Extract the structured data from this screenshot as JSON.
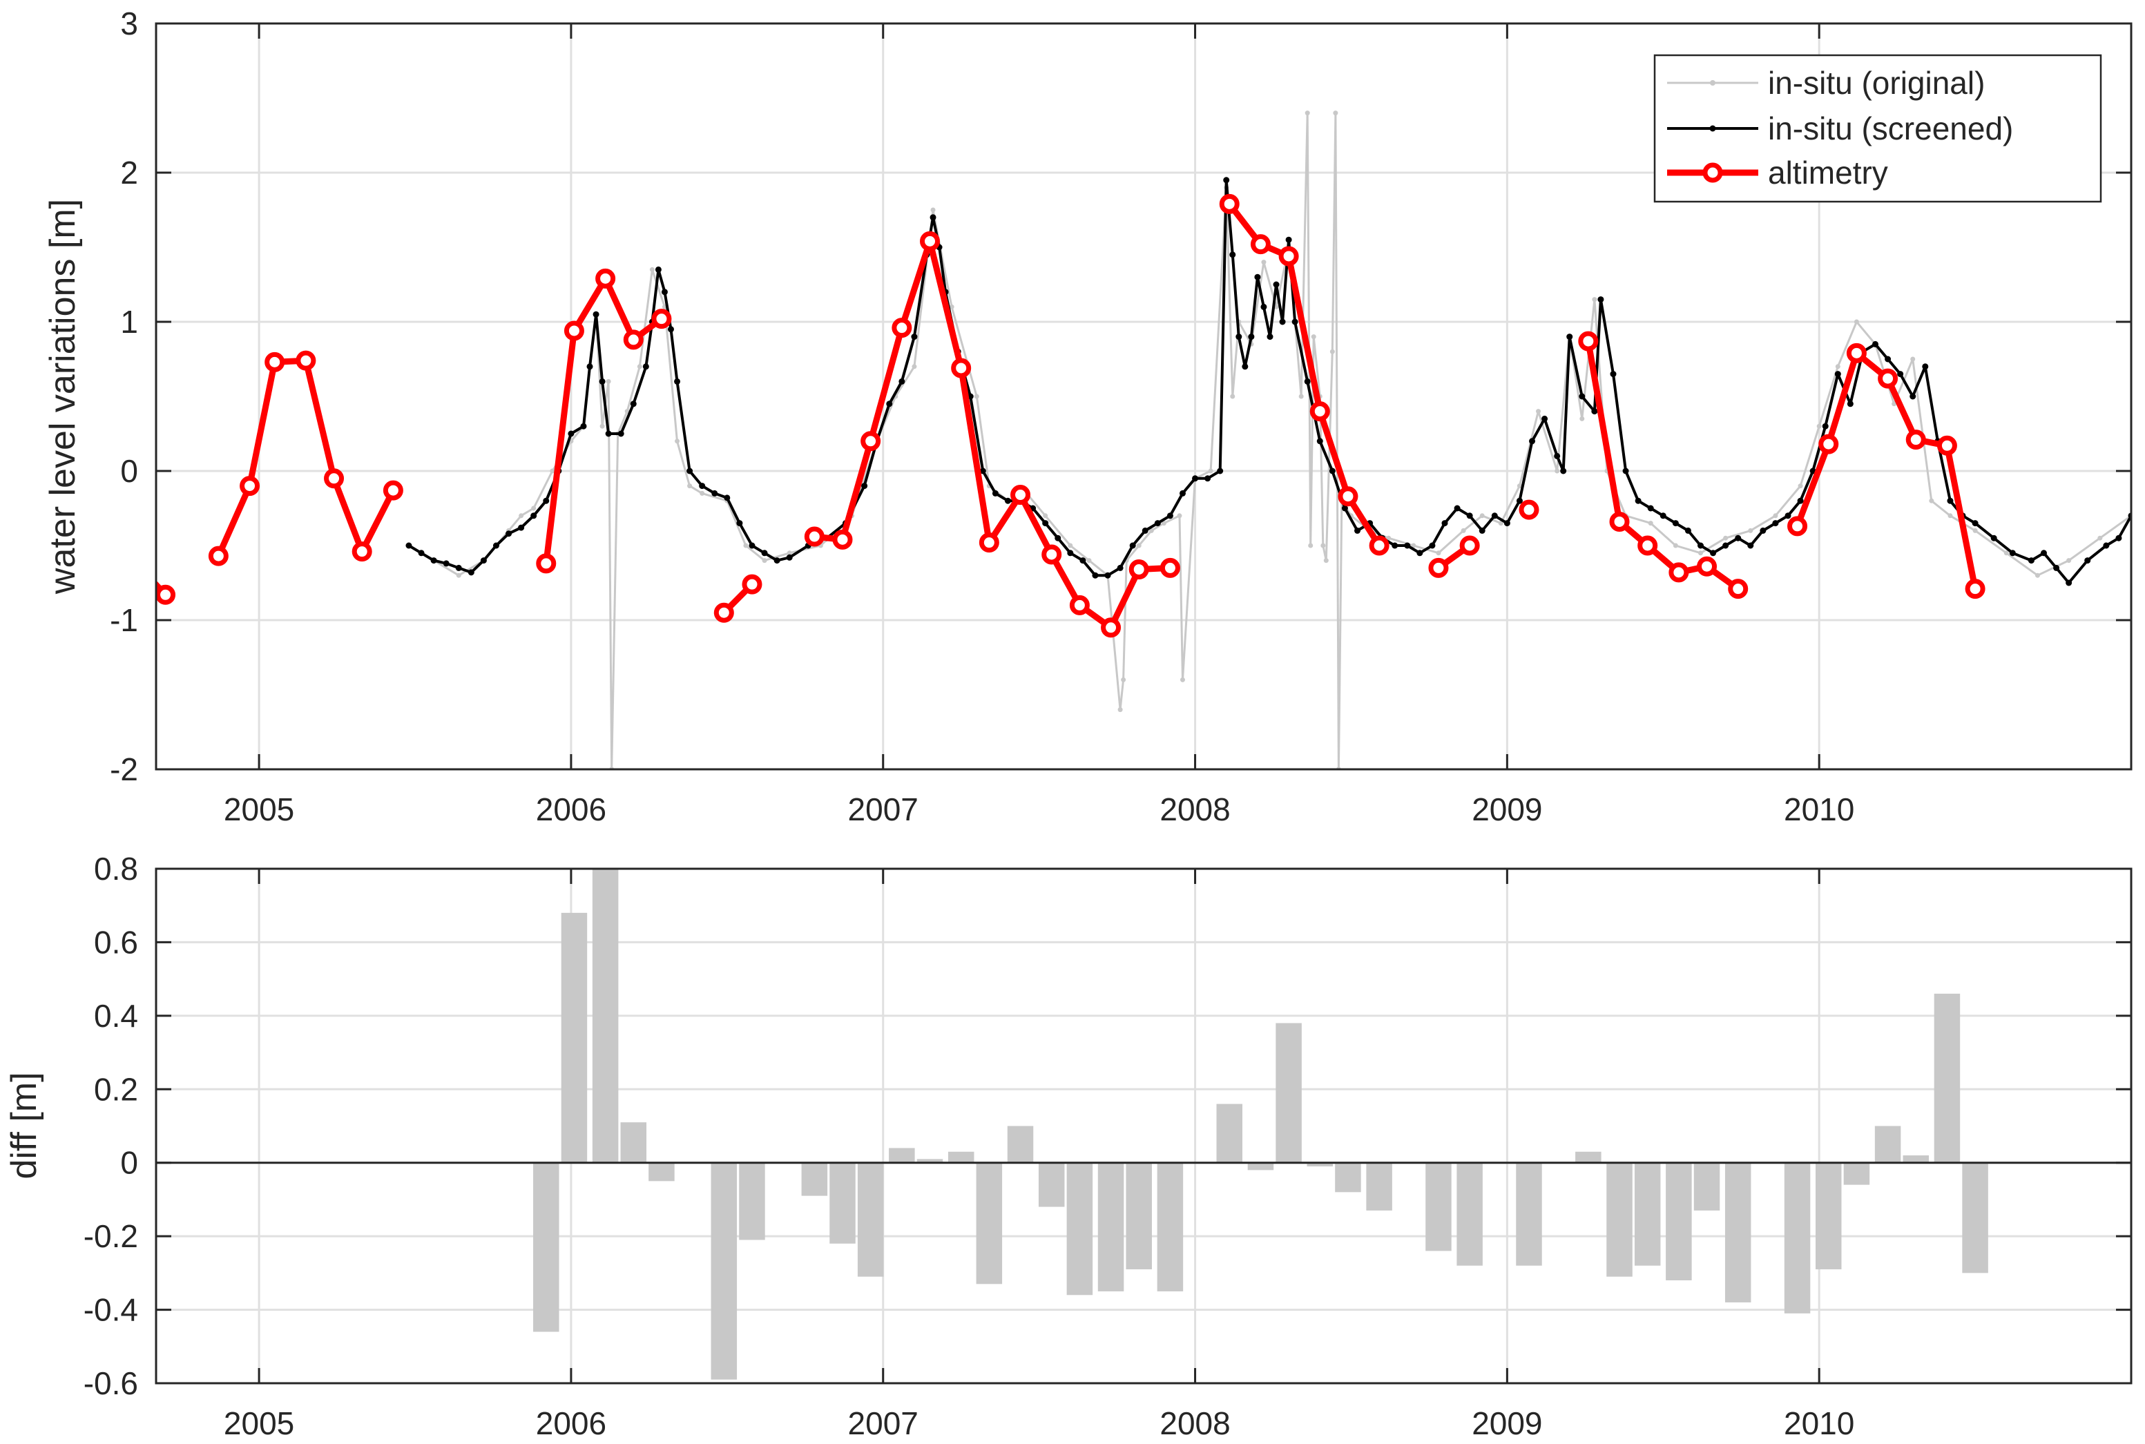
{
  "colors": {
    "insitu_original": "#c8c8c8",
    "insitu_screened": "#000000",
    "altimetry": "#ff0000",
    "diff_bar": "#c8c8c8",
    "grid": "#e0e0e0",
    "axis": "#262626"
  },
  "chart_data": [
    {
      "type": "line",
      "ylabel": "water level variations [m]",
      "xlabel": "",
      "title": "",
      "xlim": [
        2004.67,
        2011.0
      ],
      "ylim": [
        -2,
        3
      ],
      "xticks": [
        2005,
        2006,
        2007,
        2008,
        2009,
        2010
      ],
      "xtick_labels": [
        "2005",
        "2006",
        "2007",
        "2008",
        "2009",
        "2010"
      ],
      "yticks": [
        -2,
        -1,
        0,
        1,
        2,
        3
      ],
      "ytick_labels": [
        "-2",
        "-1",
        "0",
        "1",
        "2",
        "3"
      ],
      "grid": true,
      "legend_position": "top-right",
      "legend": [
        "in-situ (original)",
        "in-situ (screened)",
        "altimetry"
      ],
      "series": [
        {
          "name": "in-situ (original)",
          "style": "thin-line-dots",
          "x": [
            2005.48,
            2005.56,
            2005.64,
            2005.72,
            2005.8,
            2005.84,
            2005.88,
            2005.94,
            2006.0,
            2006.04,
            2006.08,
            2006.1,
            2006.12,
            2006.13,
            2006.15,
            2006.18,
            2006.22,
            2006.26,
            2006.3,
            2006.34,
            2006.38,
            2006.42,
            2006.5,
            2006.56,
            2006.62,
            2006.7,
            2006.8,
            2006.9,
            2006.98,
            2007.04,
            2007.1,
            2007.16,
            2007.22,
            2007.3,
            2007.34,
            2007.4,
            2007.46,
            2007.52,
            2007.6,
            2007.66,
            2007.72,
            2007.76,
            2007.77,
            2007.78,
            2007.82,
            2007.86,
            2007.9,
            2007.95,
            2007.96,
            2008.0,
            2008.05,
            2008.1,
            2008.12,
            2008.14,
            2008.18,
            2008.22,
            2008.26,
            2008.3,
            2008.34,
            2008.36,
            2008.37,
            2008.38,
            2008.4,
            2008.41,
            2008.42,
            2008.44,
            2008.45,
            2008.46,
            2008.47,
            2008.5,
            2008.56,
            2008.62,
            2008.7,
            2008.78,
            2008.86,
            2008.92,
            2008.98,
            2009.04,
            2009.1,
            2009.16,
            2009.2,
            2009.24,
            2009.28,
            2009.32,
            2009.38,
            2009.46,
            2009.54,
            2009.62,
            2009.7,
            2009.78,
            2009.86,
            2009.94,
            2010.0,
            2010.06,
            2010.12,
            2010.18,
            2010.24,
            2010.3,
            2010.36,
            2010.42,
            2010.5,
            2010.6,
            2010.7,
            2010.8,
            2010.9,
            2011.0
          ],
          "y": [
            -0.5,
            -0.6,
            -0.7,
            -0.6,
            -0.4,
            -0.3,
            -0.25,
            0.0,
            0.2,
            0.3,
            1.05,
            0.3,
            0.6,
            -2.0,
            0.25,
            0.4,
            0.7,
            1.35,
            1.1,
            0.2,
            -0.1,
            -0.15,
            -0.2,
            -0.5,
            -0.6,
            -0.55,
            -0.5,
            -0.3,
            0.2,
            0.5,
            0.7,
            1.75,
            1.1,
            0.5,
            -0.1,
            -0.2,
            -0.15,
            -0.3,
            -0.5,
            -0.6,
            -0.7,
            -1.6,
            -1.4,
            -0.6,
            -0.5,
            -0.4,
            -0.35,
            -0.3,
            -1.4,
            -0.05,
            0.0,
            1.9,
            0.5,
            1.0,
            0.85,
            1.4,
            1.1,
            1.5,
            0.5,
            2.4,
            -0.5,
            0.9,
            0.5,
            -0.5,
            -0.6,
            0.8,
            2.4,
            -2.0,
            -0.2,
            -0.3,
            -0.4,
            -0.45,
            -0.5,
            -0.55,
            -0.4,
            -0.3,
            -0.35,
            -0.1,
            0.4,
            0.0,
            0.9,
            0.35,
            1.15,
            0.0,
            -0.3,
            -0.35,
            -0.5,
            -0.55,
            -0.45,
            -0.4,
            -0.3,
            -0.1,
            0.3,
            0.7,
            1.0,
            0.85,
            0.45,
            0.75,
            -0.2,
            -0.3,
            -0.4,
            -0.55,
            -0.7,
            -0.6,
            -0.45,
            -0.3
          ]
        },
        {
          "name": "in-situ (screened)",
          "style": "thick-line-dots",
          "x": [
            2005.48,
            2005.52,
            2005.56,
            2005.6,
            2005.64,
            2005.68,
            2005.72,
            2005.76,
            2005.8,
            2005.84,
            2005.88,
            2005.92,
            2005.96,
            2006.0,
            2006.04,
            2006.06,
            2006.08,
            2006.1,
            2006.12,
            2006.16,
            2006.2,
            2006.24,
            2006.26,
            2006.28,
            2006.3,
            2006.32,
            2006.34,
            2006.38,
            2006.42,
            2006.46,
            2006.5,
            2006.54,
            2006.58,
            2006.62,
            2006.66,
            2006.7,
            2006.76,
            2006.82,
            2006.88,
            2006.94,
            2006.98,
            2007.02,
            2007.06,
            2007.1,
            2007.14,
            2007.16,
            2007.18,
            2007.2,
            2007.24,
            2007.28,
            2007.32,
            2007.36,
            2007.4,
            2007.44,
            2007.48,
            2007.52,
            2007.56,
            2007.6,
            2007.64,
            2007.68,
            2007.72,
            2007.76,
            2007.8,
            2007.84,
            2007.88,
            2007.92,
            2007.96,
            2008.0,
            2008.04,
            2008.08,
            2008.1,
            2008.12,
            2008.14,
            2008.16,
            2008.18,
            2008.2,
            2008.22,
            2008.24,
            2008.26,
            2008.28,
            2008.3,
            2008.32,
            2008.36,
            2008.4,
            2008.44,
            2008.48,
            2008.52,
            2008.56,
            2008.6,
            2008.64,
            2008.68,
            2008.72,
            2008.76,
            2008.8,
            2008.84,
            2008.88,
            2008.92,
            2008.96,
            2009.0,
            2009.04,
            2009.08,
            2009.12,
            2009.16,
            2009.18,
            2009.2,
            2009.24,
            2009.28,
            2009.3,
            2009.34,
            2009.38,
            2009.42,
            2009.46,
            2009.5,
            2009.54,
            2009.58,
            2009.62,
            2009.66,
            2009.7,
            2009.74,
            2009.78,
            2009.82,
            2009.86,
            2009.9,
            2009.94,
            2009.98,
            2010.02,
            2010.06,
            2010.1,
            2010.14,
            2010.18,
            2010.22,
            2010.26,
            2010.3,
            2010.34,
            2010.38,
            2010.42,
            2010.46,
            2010.5,
            2010.56,
            2010.62,
            2010.68,
            2010.72,
            2010.76,
            2010.8,
            2010.86,
            2010.92,
            2010.96,
            2011.0
          ],
          "y": [
            -0.5,
            -0.55,
            -0.6,
            -0.62,
            -0.65,
            -0.68,
            -0.6,
            -0.5,
            -0.42,
            -0.38,
            -0.3,
            -0.2,
            0.0,
            0.25,
            0.3,
            0.7,
            1.05,
            0.6,
            0.25,
            0.25,
            0.45,
            0.7,
            1.0,
            1.35,
            1.2,
            0.95,
            0.6,
            0.0,
            -0.1,
            -0.15,
            -0.18,
            -0.35,
            -0.5,
            -0.55,
            -0.6,
            -0.58,
            -0.5,
            -0.45,
            -0.35,
            -0.1,
            0.2,
            0.45,
            0.6,
            0.9,
            1.45,
            1.7,
            1.5,
            1.2,
            0.8,
            0.5,
            0.0,
            -0.15,
            -0.2,
            -0.2,
            -0.25,
            -0.35,
            -0.45,
            -0.55,
            -0.6,
            -0.7,
            -0.7,
            -0.65,
            -0.5,
            -0.4,
            -0.35,
            -0.3,
            -0.15,
            -0.05,
            -0.05,
            0.0,
            1.95,
            1.45,
            0.9,
            0.7,
            0.9,
            1.3,
            1.1,
            0.9,
            1.25,
            1.0,
            1.55,
            1.0,
            0.6,
            0.2,
            0.0,
            -0.25,
            -0.4,
            -0.35,
            -0.45,
            -0.5,
            -0.5,
            -0.55,
            -0.5,
            -0.35,
            -0.25,
            -0.3,
            -0.4,
            -0.3,
            -0.35,
            -0.2,
            0.2,
            0.35,
            0.1,
            0.0,
            0.9,
            0.5,
            0.4,
            1.15,
            0.65,
            0.0,
            -0.2,
            -0.25,
            -0.3,
            -0.35,
            -0.4,
            -0.5,
            -0.55,
            -0.5,
            -0.45,
            -0.5,
            -0.4,
            -0.35,
            -0.3,
            -0.2,
            0.0,
            0.3,
            0.65,
            0.45,
            0.8,
            0.85,
            0.75,
            0.65,
            0.5,
            0.7,
            0.2,
            -0.2,
            -0.3,
            -0.35,
            -0.45,
            -0.55,
            -0.6,
            -0.55,
            -0.65,
            -0.75,
            -0.6,
            -0.5,
            -0.45,
            -0.3
          ]
        },
        {
          "name": "altimetry",
          "style": "thick-line-circles",
          "segments": [
            {
              "x": [
                2004.62,
                2004.7
              ],
              "y": [
                -0.65,
                -0.83
              ]
            },
            {
              "x": [
                2004.87,
                2004.97,
                2005.05,
                2005.15,
                2005.24,
                2005.33,
                2005.43
              ],
              "y": [
                -0.57,
                -0.1,
                0.73,
                0.74,
                -0.05,
                -0.54,
                -0.13
              ]
            },
            {
              "x": [
                2005.92,
                2006.01,
                2006.11,
                2006.2,
                2006.29
              ],
              "y": [
                -0.62,
                0.94,
                1.29,
                0.88,
                1.02
              ]
            },
            {
              "x": [
                2006.49,
                2006.58
              ],
              "y": [
                -0.95,
                -0.76
              ]
            },
            {
              "x": [
                2006.78,
                2006.87,
                2006.96,
                2007.06,
                2007.15,
                2007.25,
                2007.34,
                2007.44,
                2007.54,
                2007.63,
                2007.73,
                2007.82,
                2007.92
              ],
              "y": [
                -0.44,
                -0.46,
                0.2,
                0.96,
                1.54,
                0.69,
                -0.48,
                -0.16,
                -0.56,
                -0.9,
                -1.05,
                -0.66,
                -0.65
              ]
            },
            {
              "x": [
                2008.11,
                2008.21,
                2008.3,
                2008.4,
                2008.49,
                2008.59
              ],
              "y": [
                1.79,
                1.52,
                1.44,
                0.4,
                -0.17,
                -0.5
              ]
            },
            {
              "x": [
                2008.78,
                2008.88
              ],
              "y": [
                -0.65,
                -0.5
              ]
            },
            {
              "x": [
                2009.07
              ],
              "y": [
                -0.26
              ]
            },
            {
              "x": [
                2009.26,
                2009.36,
                2009.45,
                2009.55,
                2009.64,
                2009.74
              ],
              "y": [
                0.87,
                -0.34,
                -0.5,
                -0.68,
                -0.64,
                -0.79
              ]
            },
            {
              "x": [
                2009.93,
                2010.03,
                2010.12,
                2010.22,
                2010.31,
                2010.41,
                2010.5
              ],
              "y": [
                -0.37,
                0.18,
                0.79,
                0.62,
                0.21,
                0.17,
                -0.79
              ]
            }
          ]
        }
      ]
    },
    {
      "type": "bar",
      "ylabel": "diff [m]",
      "xlabel": "",
      "title": "",
      "xlim": [
        2004.67,
        2011.0
      ],
      "ylim": [
        -0.6,
        0.8
      ],
      "xticks": [
        2005,
        2006,
        2007,
        2008,
        2009,
        2010
      ],
      "xtick_labels": [
        "2005",
        "2006",
        "2007",
        "2008",
        "2009",
        "2010"
      ],
      "yticks": [
        -0.6,
        -0.4,
        -0.2,
        0,
        0.2,
        0.4,
        0.6,
        0.8
      ],
      "ytick_labels": [
        "-0.6",
        "-0.4",
        "-0.2",
        "0",
        "0.2",
        "0.4",
        "0.6",
        "0.8"
      ],
      "grid": true,
      "bar_width": 0.083,
      "x": [
        2005.92,
        2006.01,
        2006.11,
        2006.2,
        2006.29,
        2006.49,
        2006.58,
        2006.78,
        2006.87,
        2006.96,
        2007.06,
        2007.15,
        2007.25,
        2007.34,
        2007.44,
        2007.54,
        2007.63,
        2007.73,
        2007.82,
        2007.92,
        2008.11,
        2008.21,
        2008.3,
        2008.4,
        2008.49,
        2008.59,
        2008.78,
        2008.88,
        2009.07,
        2009.26,
        2009.36,
        2009.45,
        2009.55,
        2009.64,
        2009.74,
        2009.93,
        2010.03,
        2010.12,
        2010.22,
        2010.31,
        2010.41,
        2010.5
      ],
      "values": [
        -0.46,
        0.68,
        0.8,
        0.11,
        -0.05,
        -0.59,
        -0.21,
        -0.09,
        -0.22,
        -0.31,
        0.04,
        0.01,
        0.03,
        -0.33,
        0.1,
        -0.12,
        -0.36,
        -0.35,
        -0.29,
        -0.35,
        0.16,
        -0.02,
        0.38,
        -0.01,
        -0.08,
        -0.13,
        -0.24,
        -0.28,
        -0.28,
        0.03,
        -0.31,
        -0.28,
        -0.32,
        -0.13,
        -0.38,
        -0.41,
        -0.29,
        -0.06,
        0.1,
        0.02,
        0.46,
        -0.3
      ]
    }
  ]
}
